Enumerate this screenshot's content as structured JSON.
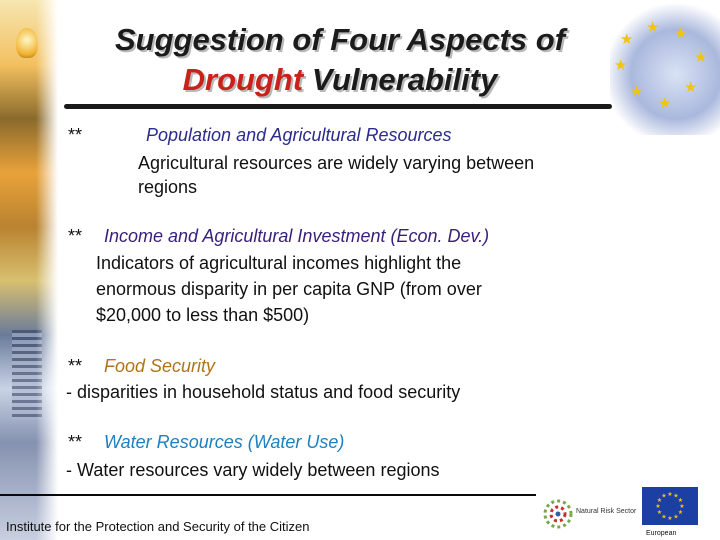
{
  "title": {
    "line1": "Suggestion of Four Aspects of",
    "line2_highlight": "Drought",
    "line2_rest": "Vulnerability"
  },
  "aspects": [
    {
      "marker": "**",
      "heading": "Population and Agricultural Resources",
      "lines": [
        "Agricultural resources are widely varying between",
        "regions"
      ]
    },
    {
      "marker": "**",
      "heading": "Income and Agricultural Investment (Econ. Dev.)",
      "lines": [
        "Indicators of agricultural incomes highlight the",
        "enormous disparity in per capita GNP (from over",
        "$20,000 to less than $500)"
      ]
    },
    {
      "marker": "**",
      "heading": "Food Security",
      "lines": [
        "- disparities in household status and food security"
      ]
    },
    {
      "marker": "**",
      "heading": "Water Resources (Water Use)",
      "lines": [
        "- Water resources vary widely between regions"
      ]
    }
  ],
  "footer": {
    "institute": "Institute for the Protection and Security of the Citizen",
    "logo_label": "Natural Risk Sector",
    "eu_label": "European"
  },
  "colors": {
    "title_highlight": "#c9221a",
    "population": "#2b2b8e",
    "income": "#3a1f7a",
    "food": "#b0741a",
    "water": "#1e80bf",
    "eu_blue": "#1b3fa3",
    "eu_star": "#f1c40f"
  },
  "icons": [
    "lightbulb-icon",
    "tower-icon",
    "eu-flag-icon",
    "natural-risk-sector-logo"
  ]
}
